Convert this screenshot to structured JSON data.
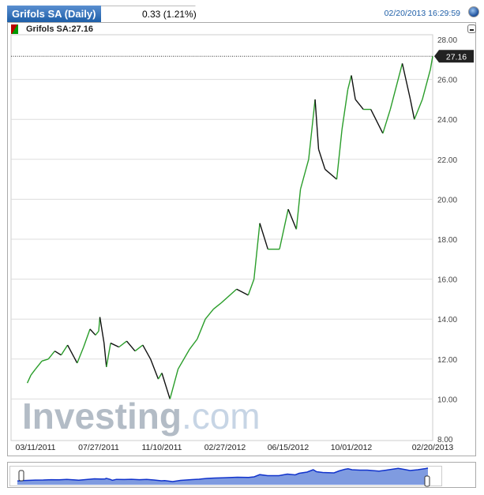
{
  "header": {
    "tab_title": "Grifols SA (Daily)",
    "change": "0.33 (1.21%)",
    "timestamp": "02/20/2013 16:29:59"
  },
  "legend": {
    "label": "Grifols SA:27.16"
  },
  "watermark": {
    "text": "Investing",
    "suffix": "com"
  },
  "colors": {
    "up": "#2a9d2a",
    "down": "#111111",
    "nav_fill": "#7f9be0",
    "nav_line": "#1133cc",
    "tab": "#1d5ea8"
  },
  "chart_data": {
    "type": "line",
    "ylim": [
      8,
      28
    ],
    "y_ticks": [
      "28.00",
      "26.00",
      "24.00",
      "22.00",
      "20.00",
      "18.00",
      "16.00",
      "14.00",
      "12.00",
      "10.00",
      "8.00"
    ],
    "x_ticks": [
      "03/11/2011",
      "07/27/2011",
      "11/10/2011",
      "02/27/2012",
      "06/15/2012",
      "10/01/2012",
      "02/20/2013"
    ],
    "grid": true,
    "last_price": "27.16",
    "last_value": 27.16,
    "points": [
      [
        "2011-02-21",
        10.8
      ],
      [
        "2011-03-01",
        11.2
      ],
      [
        "2011-03-11",
        11.5
      ],
      [
        "2011-03-25",
        11.9
      ],
      [
        "2011-04-08",
        12.0
      ],
      [
        "2011-04-22",
        12.4
      ],
      [
        "2011-05-06",
        12.2
      ],
      [
        "2011-05-20",
        12.7
      ],
      [
        "2011-06-03",
        12.1
      ],
      [
        "2011-06-10",
        11.8
      ],
      [
        "2011-06-24",
        12.6
      ],
      [
        "2011-07-08",
        13.5
      ],
      [
        "2011-07-20",
        13.2
      ],
      [
        "2011-07-27",
        13.4
      ],
      [
        "2011-07-29",
        14.1
      ],
      [
        "2011-08-05",
        12.8
      ],
      [
        "2011-08-09",
        11.6
      ],
      [
        "2011-08-16",
        12.8
      ],
      [
        "2011-08-30",
        12.6
      ],
      [
        "2011-09-12",
        12.9
      ],
      [
        "2011-09-26",
        12.4
      ],
      [
        "2011-10-09",
        12.7
      ],
      [
        "2011-10-22",
        12.0
      ],
      [
        "2011-11-04",
        11.0
      ],
      [
        "2011-11-10",
        11.3
      ],
      [
        "2011-11-24",
        10.0
      ],
      [
        "2011-12-08",
        11.5
      ],
      [
        "2011-12-28",
        12.5
      ],
      [
        "2012-01-10",
        13.0
      ],
      [
        "2012-01-24",
        14.0
      ],
      [
        "2012-02-07",
        14.5
      ],
      [
        "2012-02-20",
        14.8
      ],
      [
        "2012-03-18",
        15.5
      ],
      [
        "2012-04-07",
        15.2
      ],
      [
        "2012-04-17",
        16.0
      ],
      [
        "2012-04-27",
        18.8
      ],
      [
        "2012-05-11",
        17.5
      ],
      [
        "2012-05-31",
        17.5
      ],
      [
        "2012-06-15",
        19.5
      ],
      [
        "2012-06-29",
        18.5
      ],
      [
        "2012-07-06",
        20.5
      ],
      [
        "2012-07-20",
        22.0
      ],
      [
        "2012-07-31",
        25.0
      ],
      [
        "2012-08-06",
        22.5
      ],
      [
        "2012-08-17",
        21.5
      ],
      [
        "2012-09-06",
        21.0
      ],
      [
        "2012-09-15",
        23.5
      ],
      [
        "2012-09-25",
        25.5
      ],
      [
        "2012-10-01",
        26.2
      ],
      [
        "2012-10-08",
        25.0
      ],
      [
        "2012-10-22",
        24.5
      ],
      [
        "2012-11-04",
        24.5
      ],
      [
        "2012-11-25",
        23.3
      ],
      [
        "2012-12-08",
        24.5
      ],
      [
        "2012-12-29",
        26.8
      ],
      [
        "2013-01-12",
        25.0
      ],
      [
        "2013-01-19",
        24.0
      ],
      [
        "2013-02-02",
        25.0
      ],
      [
        "2013-02-16",
        26.5
      ],
      [
        "2013-02-20",
        27.16
      ]
    ]
  }
}
